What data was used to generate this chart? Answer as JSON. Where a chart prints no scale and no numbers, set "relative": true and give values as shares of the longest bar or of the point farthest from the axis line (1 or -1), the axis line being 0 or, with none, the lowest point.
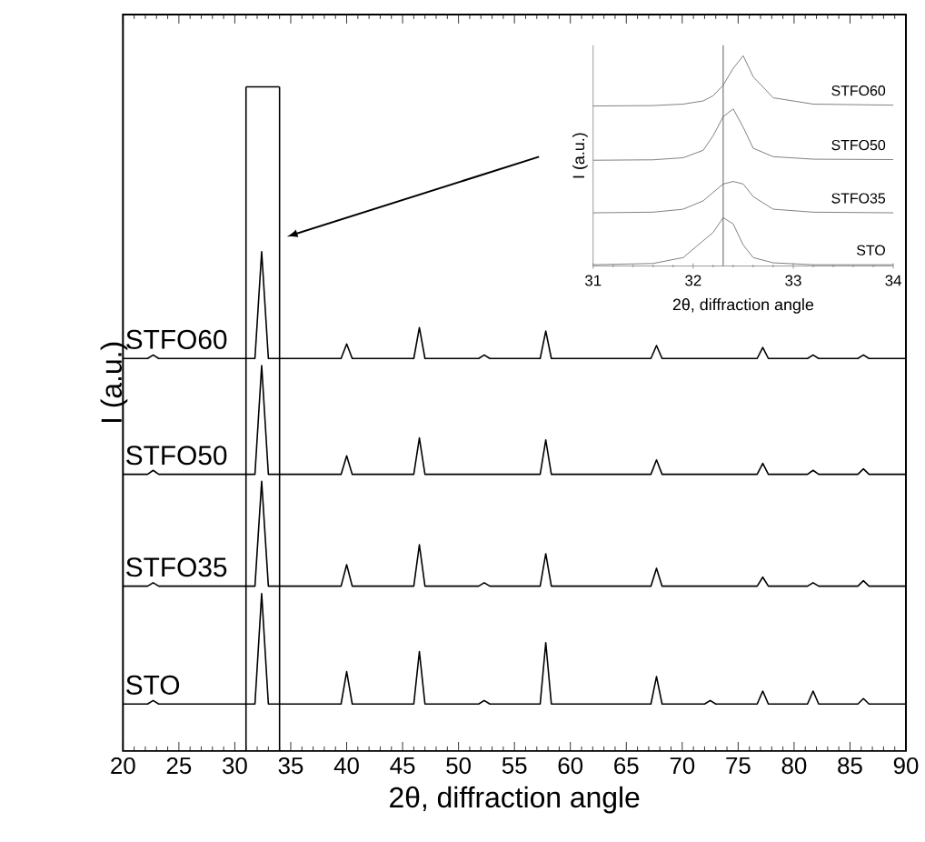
{
  "chart_data": [
    {
      "type": "line",
      "xlabel": "2θ, diffraction angle",
      "ylabel": "I (a.u.)",
      "relative": true,
      "tick_labels": "x",
      "legend": false,
      "xlim": [
        20,
        90
      ],
      "xticks": [
        20,
        25,
        30,
        35,
        40,
        45,
        50,
        55,
        60,
        65,
        70,
        75,
        80,
        85,
        90
      ],
      "ref_lines": [
        {
          "axis": "x",
          "value": 31,
          "color": "#000000"
        },
        {
          "axis": "x",
          "value": 34,
          "color": "#000000"
        }
      ],
      "x": [
        20,
        22.2,
        22.7,
        23.2,
        31.8,
        32.4,
        33.0,
        39.5,
        40.0,
        40.5,
        46.0,
        46.5,
        47.0,
        51.8,
        52.3,
        52.8,
        57.3,
        57.8,
        58.3,
        67.2,
        67.7,
        68.2,
        72.0,
        72.5,
        73.0,
        76.7,
        77.2,
        77.7,
        81.2,
        81.7,
        82.2,
        85.7,
        86.2,
        86.7,
        90
      ],
      "series": [
        {
          "name": "STFO60",
          "color": "#000000",
          "values": [
            0.786,
            0.786,
            0.793,
            0.786,
            0.786,
            1.0,
            0.786,
            0.786,
            0.815,
            0.786,
            0.786,
            0.848,
            0.786,
            0.786,
            0.793,
            0.786,
            0.786,
            0.841,
            0.786,
            0.786,
            0.812,
            0.786,
            0.786,
            0.786,
            0.786,
            0.786,
            0.808,
            0.786,
            0.786,
            0.793,
            0.786,
            0.786,
            0.793,
            0.786,
            0.786
          ]
        },
        {
          "name": "STFO50",
          "color": "#000000",
          "values": [
            0.554,
            0.554,
            0.562,
            0.554,
            0.554,
            0.772,
            0.554,
            0.554,
            0.591,
            0.554,
            0.554,
            0.627,
            0.554,
            0.554,
            0.554,
            0.554,
            0.554,
            0.623,
            0.554,
            0.554,
            0.583,
            0.554,
            0.554,
            0.554,
            0.554,
            0.554,
            0.576,
            0.554,
            0.554,
            0.562,
            0.554,
            0.554,
            0.565,
            0.554,
            0.554
          ]
        },
        {
          "name": "STFO35",
          "color": "#000000",
          "values": [
            0.33,
            0.33,
            0.337,
            0.33,
            0.33,
            0.54,
            0.33,
            0.33,
            0.373,
            0.33,
            0.33,
            0.413,
            0.33,
            0.33,
            0.337,
            0.33,
            0.33,
            0.395,
            0.33,
            0.33,
            0.366,
            0.33,
            0.33,
            0.33,
            0.33,
            0.33,
            0.348,
            0.33,
            0.33,
            0.337,
            0.33,
            0.33,
            0.341,
            0.33,
            0.33
          ]
        },
        {
          "name": "STO",
          "color": "#000000",
          "values": [
            0.094,
            0.094,
            0.101,
            0.094,
            0.094,
            0.315,
            0.094,
            0.094,
            0.159,
            0.094,
            0.094,
            0.199,
            0.094,
            0.094,
            0.101,
            0.094,
            0.094,
            0.217,
            0.094,
            0.094,
            0.149,
            0.094,
            0.094,
            0.101,
            0.094,
            0.094,
            0.12,
            0.094,
            0.094,
            0.12,
            0.094,
            0.094,
            0.105,
            0.094,
            0.094
          ]
        }
      ]
    },
    {
      "type": "line",
      "xlabel": "2θ, diffraction angle",
      "ylabel": "I (a.u.)",
      "relative": true,
      "tick_labels": "x",
      "legend": false,
      "xlim": [
        31,
        34
      ],
      "xticks": [
        31,
        32,
        33,
        34
      ],
      "x": [
        31,
        31.6,
        31.9,
        32.1,
        32.2,
        32.3,
        32.4,
        32.5,
        32.6,
        32.8,
        33.2,
        34
      ],
      "ref_lines": [
        {
          "axis": "x",
          "value": 32.3,
          "color": "#606060"
        }
      ],
      "series": [
        {
          "name": "STFO60",
          "color": "#808080",
          "values": [
            0.761,
            0.763,
            0.77,
            0.785,
            0.81,
            0.86,
            0.94,
            1.0,
            0.9,
            0.8,
            0.77,
            0.765
          ]
        },
        {
          "name": "STFO50",
          "color": "#808080",
          "values": [
            0.503,
            0.505,
            0.515,
            0.55,
            0.62,
            0.71,
            0.747,
            0.66,
            0.56,
            0.52,
            0.508,
            0.506
          ]
        },
        {
          "name": "STFO35",
          "color": "#808080",
          "values": [
            0.253,
            0.256,
            0.27,
            0.31,
            0.35,
            0.39,
            0.402,
            0.39,
            0.33,
            0.27,
            0.256,
            0.253
          ]
        },
        {
          "name": "STO",
          "color": "#808080",
          "values": [
            0.006,
            0.012,
            0.04,
            0.12,
            0.16,
            0.23,
            0.2,
            0.1,
            0.04,
            0.015,
            0.006,
            0.006
          ]
        }
      ]
    }
  ]
}
